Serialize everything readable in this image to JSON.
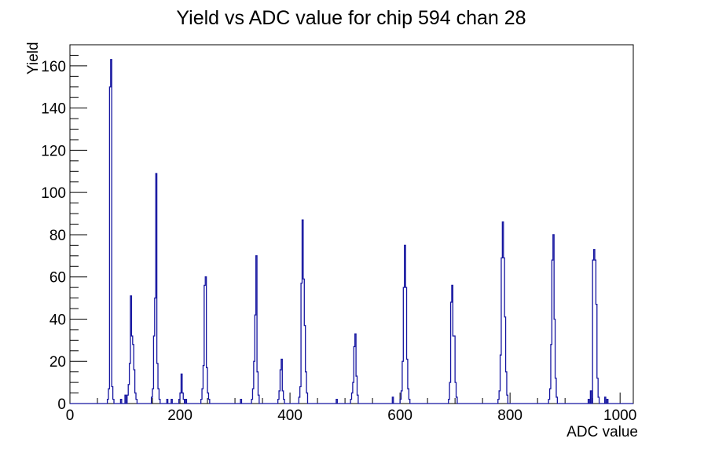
{
  "title": "Yield vs ADC value for chip 594 chan 28",
  "chart_data": {
    "type": "bar",
    "subtype": "step-histogram",
    "title": "Yield vs ADC value for chip 594 chan 28",
    "xlabel": "ADC value",
    "ylabel": "Yield",
    "xlim": [
      0,
      1024
    ],
    "ylim": [
      0,
      170
    ],
    "x_major_ticks": [
      0,
      200,
      400,
      600,
      800,
      1000
    ],
    "x_minor_step": 50,
    "y_major_ticks": [
      0,
      20,
      40,
      60,
      80,
      100,
      120,
      140,
      160
    ],
    "y_minor_step": 5,
    "grid": false,
    "legend": "none",
    "line_color": "#1515a0",
    "frame_color": "#000000",
    "bin_width": 2,
    "bins": [
      [
        68,
        2
      ],
      [
        70,
        7
      ],
      [
        72,
        150
      ],
      [
        74,
        163
      ],
      [
        76,
        8
      ],
      [
        78,
        2
      ],
      [
        92,
        2
      ],
      [
        100,
        4
      ],
      [
        104,
        4
      ],
      [
        106,
        9
      ],
      [
        108,
        19
      ],
      [
        110,
        51
      ],
      [
        112,
        32
      ],
      [
        114,
        28
      ],
      [
        116,
        16
      ],
      [
        118,
        5
      ],
      [
        120,
        2
      ],
      [
        148,
        3
      ],
      [
        150,
        7
      ],
      [
        152,
        32
      ],
      [
        154,
        50
      ],
      [
        156,
        109
      ],
      [
        158,
        19
      ],
      [
        160,
        7
      ],
      [
        162,
        2
      ],
      [
        176,
        2
      ],
      [
        184,
        2
      ],
      [
        198,
        2
      ],
      [
        200,
        5
      ],
      [
        202,
        14
      ],
      [
        204,
        5
      ],
      [
        206,
        2
      ],
      [
        210,
        2
      ],
      [
        238,
        2
      ],
      [
        240,
        7
      ],
      [
        242,
        18
      ],
      [
        244,
        56
      ],
      [
        246,
        60
      ],
      [
        248,
        17
      ],
      [
        250,
        5
      ],
      [
        252,
        2
      ],
      [
        310,
        2
      ],
      [
        330,
        2
      ],
      [
        332,
        7
      ],
      [
        334,
        20
      ],
      [
        336,
        42
      ],
      [
        338,
        70
      ],
      [
        340,
        15
      ],
      [
        342,
        4
      ],
      [
        378,
        2
      ],
      [
        380,
        6
      ],
      [
        382,
        16
      ],
      [
        384,
        21
      ],
      [
        386,
        6
      ],
      [
        388,
        2
      ],
      [
        416,
        3
      ],
      [
        418,
        8
      ],
      [
        420,
        57
      ],
      [
        422,
        87
      ],
      [
        424,
        59
      ],
      [
        426,
        37
      ],
      [
        428,
        15
      ],
      [
        430,
        5
      ],
      [
        484,
        2
      ],
      [
        510,
        2
      ],
      [
        512,
        5
      ],
      [
        514,
        10
      ],
      [
        516,
        27
      ],
      [
        518,
        33
      ],
      [
        520,
        13
      ],
      [
        522,
        4
      ],
      [
        586,
        3
      ],
      [
        600,
        2
      ],
      [
        602,
        6
      ],
      [
        604,
        20
      ],
      [
        606,
        55
      ],
      [
        608,
        75
      ],
      [
        610,
        55
      ],
      [
        612,
        21
      ],
      [
        614,
        7
      ],
      [
        616,
        2
      ],
      [
        688,
        2
      ],
      [
        690,
        10
      ],
      [
        692,
        48
      ],
      [
        694,
        56
      ],
      [
        696,
        32
      ],
      [
        698,
        32
      ],
      [
        700,
        10
      ],
      [
        702,
        3
      ],
      [
        778,
        2
      ],
      [
        780,
        6
      ],
      [
        782,
        23
      ],
      [
        784,
        69
      ],
      [
        786,
        86
      ],
      [
        788,
        69
      ],
      [
        790,
        41
      ],
      [
        792,
        15
      ],
      [
        794,
        4
      ],
      [
        870,
        2
      ],
      [
        872,
        7
      ],
      [
        874,
        28
      ],
      [
        876,
        68
      ],
      [
        878,
        80
      ],
      [
        880,
        40
      ],
      [
        882,
        12
      ],
      [
        884,
        3
      ],
      [
        942,
        2
      ],
      [
        946,
        6
      ],
      [
        950,
        68
      ],
      [
        952,
        73
      ],
      [
        954,
        68
      ],
      [
        956,
        47
      ],
      [
        958,
        12
      ],
      [
        960,
        3
      ],
      [
        972,
        3
      ],
      [
        976,
        2
      ]
    ]
  }
}
